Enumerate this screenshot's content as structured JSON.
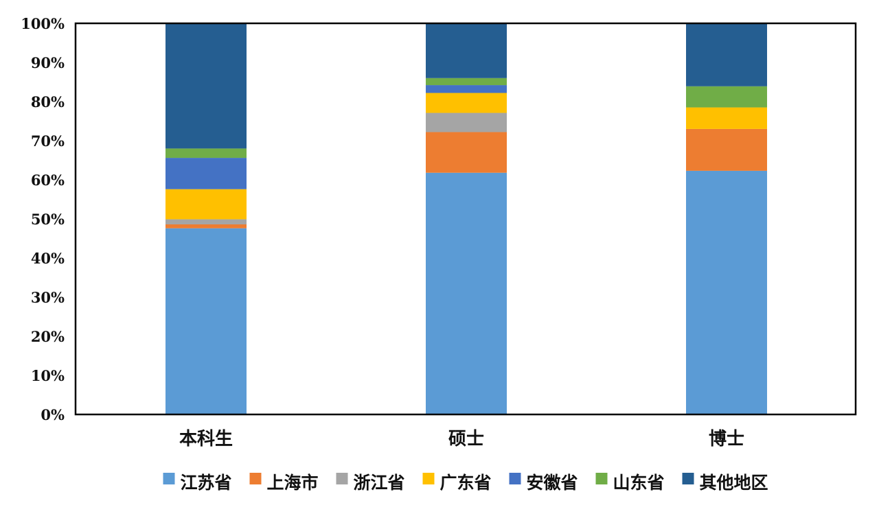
{
  "chart_data": {
    "type": "bar",
    "stacked": true,
    "percent": true,
    "categories": [
      "本科生",
      "硕士",
      "博士"
    ],
    "series": [
      {
        "name": "江苏省",
        "color": "#5B9BD5",
        "values": [
          47.6,
          61.8,
          62.3
        ]
      },
      {
        "name": "上海市",
        "color": "#ED7D31",
        "values": [
          1.0,
          10.4,
          10.7
        ]
      },
      {
        "name": "浙江省",
        "color": "#A5A5A5",
        "values": [
          1.3,
          4.9,
          0.0
        ]
      },
      {
        "name": "广东省",
        "color": "#FFC000",
        "values": [
          7.7,
          5.1,
          5.5
        ]
      },
      {
        "name": "安徽省",
        "color": "#4472C4",
        "values": [
          8.0,
          2.0,
          0.0
        ]
      },
      {
        "name": "山东省",
        "color": "#70AD47",
        "values": [
          2.4,
          1.8,
          5.4
        ]
      },
      {
        "name": "其他地区",
        "color": "#255E91",
        "values": [
          32.0,
          14.0,
          16.1
        ]
      }
    ],
    "y_ticks": [
      "0%",
      "10%",
      "20%",
      "30%",
      "40%",
      "50%",
      "60%",
      "70%",
      "80%",
      "90%",
      "100%"
    ],
    "ylim": [
      0,
      100
    ],
    "grid": false,
    "legend_position": "bottom"
  }
}
